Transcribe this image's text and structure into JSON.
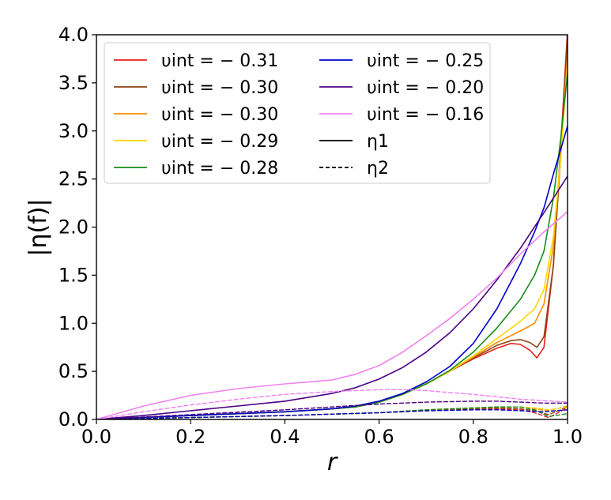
{
  "chart_data": {
    "type": "line",
    "xlabel": "r",
    "ylabel": "|η(f)|",
    "xlim": [
      0.0,
      1.0
    ],
    "ylim": [
      0.0,
      4.0
    ],
    "xticks": [
      "0.0",
      "0.2",
      "0.4",
      "0.6",
      "0.8",
      "1.0"
    ],
    "yticks": [
      "0.0",
      "0.5",
      "1.0",
      "1.5",
      "2.0",
      "2.5",
      "3.0",
      "3.5",
      "4.0"
    ],
    "legend_position": "top-left",
    "legend": [
      {
        "label": "υint = − 0.31",
        "color": "#e6201f",
        "style": "solid"
      },
      {
        "label": "υint = − 0.30",
        "color": "#8b4513",
        "style": "solid"
      },
      {
        "label": "υint = − 0.30",
        "color": "#ff8c00",
        "style": "solid"
      },
      {
        "label": "υint = − 0.29",
        "color": "#ffd700",
        "style": "solid"
      },
      {
        "label": "υint = − 0.28",
        "color": "#1a8c1a",
        "style": "solid"
      },
      {
        "label": "υint = − 0.25",
        "color": "#0000cd",
        "style": "solid"
      },
      {
        "label": "υint = − 0.20",
        "color": "#4b0082",
        "style": "solid"
      },
      {
        "label": "υint = − 0.16",
        "color": "#ee82ee",
        "style": "solid"
      },
      {
        "label": "η1",
        "color": "#000000",
        "style": "solid"
      },
      {
        "label": "η2",
        "color": "#000000",
        "style": "dashed"
      }
    ],
    "series": [
      {
        "name": "η1, υint = −0.31",
        "color": "#e6201f",
        "dash": false,
        "x": [
          0,
          0.1,
          0.2,
          0.3,
          0.4,
          0.5,
          0.55,
          0.6,
          0.65,
          0.7,
          0.75,
          0.8,
          0.85,
          0.88,
          0.9,
          0.92,
          0.935,
          0.95,
          0.97,
          0.985,
          1.0
        ],
        "y": [
          0,
          0.02,
          0.04,
          0.06,
          0.08,
          0.11,
          0.13,
          0.18,
          0.26,
          0.37,
          0.5,
          0.63,
          0.74,
          0.79,
          0.78,
          0.72,
          0.64,
          0.75,
          1.6,
          2.8,
          4.05
        ]
      },
      {
        "name": "η1, υint = −0.30 (brown)",
        "color": "#8b4513",
        "dash": false,
        "x": [
          0,
          0.1,
          0.2,
          0.3,
          0.4,
          0.5,
          0.55,
          0.6,
          0.65,
          0.7,
          0.75,
          0.8,
          0.85,
          0.88,
          0.9,
          0.92,
          0.935,
          0.95,
          0.97,
          0.985,
          1.0
        ],
        "y": [
          0,
          0.02,
          0.04,
          0.06,
          0.08,
          0.11,
          0.13,
          0.18,
          0.26,
          0.37,
          0.5,
          0.64,
          0.77,
          0.82,
          0.83,
          0.8,
          0.75,
          0.86,
          1.6,
          2.7,
          4.0
        ]
      },
      {
        "name": "η1, υint = −0.30 (orange)",
        "color": "#ff8c00",
        "dash": false,
        "x": [
          0,
          0.1,
          0.2,
          0.3,
          0.4,
          0.5,
          0.55,
          0.6,
          0.65,
          0.7,
          0.75,
          0.8,
          0.85,
          0.9,
          0.93,
          0.95,
          0.97,
          0.985,
          1.0
        ],
        "y": [
          0,
          0.02,
          0.04,
          0.06,
          0.08,
          0.11,
          0.13,
          0.18,
          0.26,
          0.37,
          0.5,
          0.65,
          0.8,
          0.92,
          1.0,
          1.2,
          1.8,
          2.7,
          3.8
        ]
      },
      {
        "name": "η1, υint = −0.29",
        "color": "#ffd700",
        "dash": false,
        "x": [
          0,
          0.1,
          0.2,
          0.3,
          0.4,
          0.5,
          0.55,
          0.6,
          0.65,
          0.7,
          0.75,
          0.8,
          0.85,
          0.9,
          0.93,
          0.95,
          0.97,
          0.985,
          1.0
        ],
        "y": [
          0,
          0.02,
          0.04,
          0.06,
          0.08,
          0.11,
          0.13,
          0.18,
          0.26,
          0.37,
          0.5,
          0.66,
          0.84,
          1.02,
          1.15,
          1.35,
          1.9,
          2.7,
          3.7
        ]
      },
      {
        "name": "η1, υint = −0.28",
        "color": "#1a8c1a",
        "dash": false,
        "x": [
          0,
          0.1,
          0.2,
          0.3,
          0.4,
          0.5,
          0.55,
          0.6,
          0.65,
          0.7,
          0.75,
          0.8,
          0.85,
          0.9,
          0.93,
          0.95,
          0.97,
          0.985,
          1.0
        ],
        "y": [
          0,
          0.02,
          0.04,
          0.06,
          0.08,
          0.11,
          0.13,
          0.18,
          0.26,
          0.37,
          0.51,
          0.7,
          0.95,
          1.25,
          1.5,
          1.75,
          2.3,
          2.9,
          3.6
        ]
      },
      {
        "name": "η1, υint = −0.25",
        "color": "#0000cd",
        "dash": false,
        "x": [
          0,
          0.1,
          0.2,
          0.3,
          0.4,
          0.5,
          0.55,
          0.6,
          0.65,
          0.7,
          0.75,
          0.8,
          0.85,
          0.9,
          0.93,
          0.95,
          0.97,
          0.985,
          1.0
        ],
        "y": [
          0,
          0.02,
          0.04,
          0.06,
          0.08,
          0.11,
          0.14,
          0.19,
          0.27,
          0.39,
          0.55,
          0.79,
          1.15,
          1.62,
          1.95,
          2.2,
          2.55,
          2.8,
          3.05
        ]
      },
      {
        "name": "η1, υint = −0.20",
        "color": "#4b0082",
        "dash": false,
        "x": [
          0,
          0.1,
          0.2,
          0.3,
          0.4,
          0.5,
          0.55,
          0.6,
          0.65,
          0.7,
          0.75,
          0.8,
          0.85,
          0.9,
          0.95,
          1.0
        ],
        "y": [
          0,
          0.04,
          0.09,
          0.14,
          0.19,
          0.27,
          0.33,
          0.42,
          0.54,
          0.7,
          0.9,
          1.15,
          1.45,
          1.78,
          2.15,
          2.53
        ]
      },
      {
        "name": "η1, υint = −0.16",
        "color": "#ee82ee",
        "dash": false,
        "x": [
          0,
          0.1,
          0.2,
          0.3,
          0.4,
          0.5,
          0.55,
          0.6,
          0.65,
          0.7,
          0.75,
          0.8,
          0.85,
          0.9,
          0.95,
          1.0
        ],
        "y": [
          0,
          0.14,
          0.25,
          0.32,
          0.37,
          0.41,
          0.47,
          0.56,
          0.7,
          0.87,
          1.05,
          1.25,
          1.47,
          1.72,
          1.95,
          2.16
        ]
      },
      {
        "name": "η2, υint = −0.31",
        "color": "#e6201f",
        "dash": true,
        "x": [
          0,
          0.2,
          0.4,
          0.6,
          0.7,
          0.8,
          0.85,
          0.9,
          0.93,
          0.96,
          1.0
        ],
        "y": [
          0,
          0.02,
          0.04,
          0.07,
          0.09,
          0.1,
          0.11,
          0.1,
          0.07,
          0.02,
          0.12
        ]
      },
      {
        "name": "η2, υint = −0.30 (brown)",
        "color": "#8b4513",
        "dash": true,
        "x": [
          0,
          0.2,
          0.4,
          0.6,
          0.7,
          0.8,
          0.85,
          0.9,
          0.93,
          0.96,
          1.0
        ],
        "y": [
          0,
          0.02,
          0.04,
          0.07,
          0.09,
          0.11,
          0.12,
          0.11,
          0.09,
          0.05,
          0.13
        ]
      },
      {
        "name": "η2, υint = −0.30 (orange)",
        "color": "#ff8c00",
        "dash": true,
        "x": [
          0,
          0.2,
          0.4,
          0.6,
          0.7,
          0.8,
          0.85,
          0.9,
          0.93,
          0.96,
          1.0
        ],
        "y": [
          0,
          0.02,
          0.04,
          0.07,
          0.1,
          0.12,
          0.13,
          0.13,
          0.11,
          0.09,
          0.14
        ]
      },
      {
        "name": "η2, υint = −0.29",
        "color": "#ffd700",
        "dash": true,
        "x": [
          0,
          0.2,
          0.4,
          0.6,
          0.7,
          0.8,
          0.85,
          0.9,
          0.93,
          0.96,
          1.0
        ],
        "y": [
          0,
          0.02,
          0.04,
          0.07,
          0.1,
          0.12,
          0.13,
          0.13,
          0.12,
          0.1,
          0.13
        ]
      },
      {
        "name": "η2, υint = −0.28",
        "color": "#1a8c1a",
        "dash": true,
        "x": [
          0,
          0.2,
          0.4,
          0.6,
          0.7,
          0.8,
          0.85,
          0.9,
          0.93,
          0.96,
          1.0
        ],
        "y": [
          0,
          0.02,
          0.04,
          0.07,
          0.1,
          0.12,
          0.13,
          0.13,
          0.1,
          0.03,
          0.06
        ]
      },
      {
        "name": "η2, υint = −0.25",
        "color": "#0000cd",
        "dash": true,
        "x": [
          0,
          0.2,
          0.4,
          0.6,
          0.7,
          0.8,
          0.85,
          0.9,
          0.95,
          1.0
        ],
        "y": [
          0,
          0.02,
          0.04,
          0.07,
          0.09,
          0.1,
          0.1,
          0.09,
          0.08,
          0.1
        ]
      },
      {
        "name": "η2, υint = −0.20",
        "color": "#4b0082",
        "dash": true,
        "x": [
          0,
          0.2,
          0.4,
          0.5,
          0.6,
          0.7,
          0.8,
          0.85,
          0.9,
          0.95,
          1.0
        ],
        "y": [
          0,
          0.05,
          0.1,
          0.13,
          0.16,
          0.18,
          0.19,
          0.19,
          0.18,
          0.17,
          0.17
        ]
      },
      {
        "name": "η2, υint = −0.16",
        "color": "#ee82ee",
        "dash": true,
        "x": [
          0,
          0.1,
          0.2,
          0.3,
          0.4,
          0.5,
          0.6,
          0.65,
          0.7,
          0.8,
          0.9,
          1.0
        ],
        "y": [
          0,
          0.08,
          0.15,
          0.21,
          0.26,
          0.29,
          0.31,
          0.31,
          0.3,
          0.26,
          0.21,
          0.18
        ]
      }
    ]
  }
}
